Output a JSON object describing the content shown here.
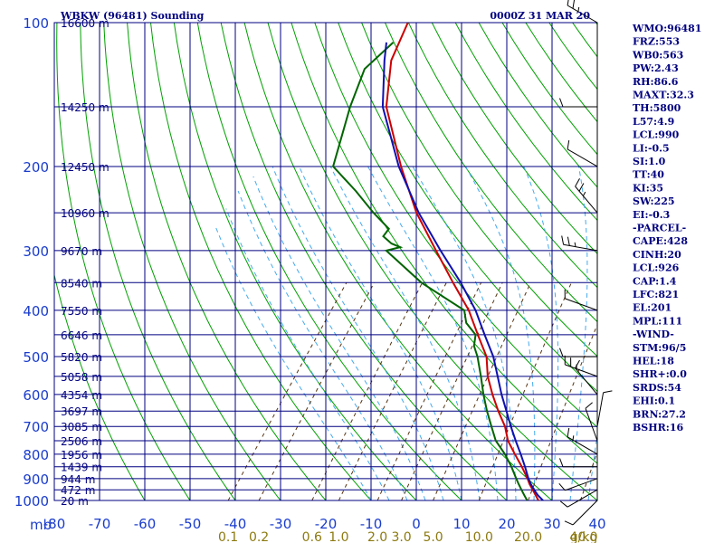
{
  "header": {
    "station": "WBKW (96481) Sounding",
    "time": "0000Z 31 MAR 20"
  },
  "indices": [
    "WMO:96481",
    "FRZ:553",
    "WB0:563",
    "PW:2.43",
    "RH:86.6",
    "MAXT:32.3",
    "TH:5800",
    "L57:4.9",
    "LCL:990",
    "LI:-0.5",
    "SI:1.0",
    "TT:40",
    "KI:35",
    "SW:225",
    "EI:-0.3",
    "-PARCEL-",
    "CAPE:428",
    "CINH:20",
    "LCL:926",
    "CAP:1.4",
    "LFC:821",
    "EL:201",
    "MPL:111",
    "-WIND-",
    "STM:96/5",
    "HEL:18",
    "SHR+:0.0",
    "SRDS:54",
    "EHI:0.1",
    "BRN:27.2",
    "BSHR:16"
  ],
  "chart_data": {
    "type": "line",
    "diagram": "skew-T log-P",
    "title": "WBKW (96481) Sounding",
    "ylabel": "mb",
    "ylim": [
      1000,
      100
    ],
    "xlim": [
      -80,
      40
    ],
    "pressure_ticks": [
      {
        "p": 100,
        "label": "100",
        "height": "16600 m"
      },
      {
        "p": 150,
        "label": "",
        "height": "14250 m"
      },
      {
        "p": 200,
        "label": "200",
        "height": "12450 m"
      },
      {
        "p": 250,
        "label": "",
        "height": "10960 m"
      },
      {
        "p": 300,
        "label": "300",
        "height": "9670 m"
      },
      {
        "p": 350,
        "label": "",
        "height": "8540 m"
      },
      {
        "p": 400,
        "label": "400",
        "height": "7550 m"
      },
      {
        "p": 450,
        "label": "",
        "height": "6646 m"
      },
      {
        "p": 500,
        "label": "500",
        "height": "5820 m"
      },
      {
        "p": 550,
        "label": "",
        "height": "5058 m"
      },
      {
        "p": 600,
        "label": "600",
        "height": "4354 m"
      },
      {
        "p": 650,
        "label": "",
        "height": "3697 m"
      },
      {
        "p": 700,
        "label": "700",
        "height": "3085 m"
      },
      {
        "p": 750,
        "label": "",
        "height": "2506 m"
      },
      {
        "p": 800,
        "label": "800",
        "height": "1956 m"
      },
      {
        "p": 850,
        "label": "",
        "height": "1439 m"
      },
      {
        "p": 900,
        "label": "900",
        "height": "944 m"
      },
      {
        "p": 950,
        "label": "",
        "height": "472 m"
      },
      {
        "p": 1000,
        "label": "1000",
        "height": "20 m"
      }
    ],
    "temperature_ticks": [
      {
        "t": -80,
        "label": "-80"
      },
      {
        "t": -70,
        "label": "-70"
      },
      {
        "t": -60,
        "label": "-60"
      },
      {
        "t": -50,
        "label": "-50"
      },
      {
        "t": -40,
        "label": "-40"
      },
      {
        "t": -30,
        "label": "-30"
      },
      {
        "t": -20,
        "label": "-20"
      },
      {
        "t": -10,
        "label": "-10"
      },
      {
        "t": 0,
        "label": "0"
      },
      {
        "t": 10,
        "label": "10"
      },
      {
        "t": 20,
        "label": "20"
      },
      {
        "t": 30,
        "label": "30"
      },
      {
        "t": 40,
        "label": "40"
      }
    ],
    "pressure_axis_unit": "mb",
    "mixing_ratio_ticks": [
      {
        "w": 0.1,
        "label": "0.1"
      },
      {
        "w": 0.2,
        "label": "0.2"
      },
      {
        "w": 0.6,
        "label": "0.6"
      },
      {
        "w": 1.0,
        "label": "1.0"
      },
      {
        "w": 2.0,
        "label": "2.0"
      },
      {
        "w": 3.0,
        "label": "3.0"
      },
      {
        "w": 5.0,
        "label": "5.0"
      },
      {
        "w": 10.0,
        "label": "10.0"
      },
      {
        "w": 20.0,
        "label": "20.0"
      },
      {
        "w": 40.0,
        "label": "40.0"
      }
    ],
    "mixing_ratio_unit": "g/kg",
    "series": [
      {
        "color": "#cc0000",
        "p": [
          1000,
          975,
          950,
          925,
          900,
          850,
          800,
          750,
          700,
          650,
          600,
          550,
          500,
          450,
          400,
          350,
          300,
          250,
          200,
          150,
          120,
          100
        ],
        "t": [
          27.0,
          25.5,
          24.0,
          22.4,
          21.0,
          17.8,
          14.2,
          10.5,
          7.5,
          3.5,
          -0.5,
          -4.5,
          -8.0,
          -13.5,
          -19.5,
          -27.5,
          -36.5,
          -47.0,
          -58.0,
          -71.0,
          -77.5,
          -80.0
        ]
      },
      {
        "color": "#006400",
        "p": [
          1000,
          975,
          950,
          925,
          900,
          850,
          800,
          750,
          700,
          650,
          600,
          550,
          500,
          475,
          450,
          425,
          400,
          350,
          300,
          295,
          290,
          280,
          270,
          250,
          225,
          200,
          150,
          125,
          110
        ],
        "t": [
          24.5,
          23.0,
          21.5,
          20.0,
          18.5,
          15.5,
          12.0,
          7.8,
          4.5,
          1.0,
          -2.5,
          -6.0,
          -10.0,
          -12.5,
          -14.0,
          -18.0,
          -20.5,
          -34.5,
          -47.5,
          -45.0,
          -47.5,
          -50.5,
          -50.5,
          -56.5,
          -64.0,
          -73.0,
          -79.0,
          -82.0,
          -80.0
        ]
      },
      {
        "color": "#1010b0",
        "p": [
          1000,
          975,
          950,
          925,
          900,
          850,
          800,
          750,
          700,
          650,
          600,
          550,
          500,
          450,
          400,
          350,
          300,
          250,
          200,
          150,
          120,
          110
        ],
        "t": [
          28.0,
          26.0,
          24.3,
          22.7,
          21.2,
          18.5,
          15.5,
          12.2,
          8.8,
          5.3,
          1.5,
          -2.3,
          -6.5,
          -12.0,
          -18.0,
          -25.8,
          -35.5,
          -46.5,
          -58.5,
          -71.8,
          -79.0,
          -81.5
        ]
      }
    ],
    "wind_barbs": [
      {
        "p": 1000,
        "dir": 225,
        "kt": 10
      },
      {
        "p": 950,
        "dir": 240,
        "kt": 10
      },
      {
        "p": 900,
        "dir": 250,
        "kt": 10
      },
      {
        "p": 850,
        "dir": 270,
        "kt": 10
      },
      {
        "p": 800,
        "dir": 300,
        "kt": 5
      },
      {
        "p": 750,
        "dir": 340,
        "kt": 10
      },
      {
        "p": 700,
        "dir": 10,
        "kt": 10
      },
      {
        "p": 600,
        "dir": 320,
        "kt": 10
      },
      {
        "p": 550,
        "dir": 290,
        "kt": 15
      },
      {
        "p": 500,
        "dir": 270,
        "kt": 10
      },
      {
        "p": 400,
        "dir": 290,
        "kt": 10
      },
      {
        "p": 300,
        "dir": 280,
        "kt": 15
      },
      {
        "p": 250,
        "dir": 320,
        "kt": 15
      },
      {
        "p": 200,
        "dir": 300,
        "kt": 10
      },
      {
        "p": 150,
        "dir": 270,
        "kt": 10
      },
      {
        "p": 100,
        "dir": 300,
        "kt": 15
      }
    ],
    "grid": true,
    "background_lines": {
      "isobar_color": "#000080",
      "isotherm_color": "#000080",
      "dry_adiabat_color": "#00a000",
      "moist_adiabat_color": "#44aaee",
      "mixing_ratio_color": "#553311"
    }
  }
}
